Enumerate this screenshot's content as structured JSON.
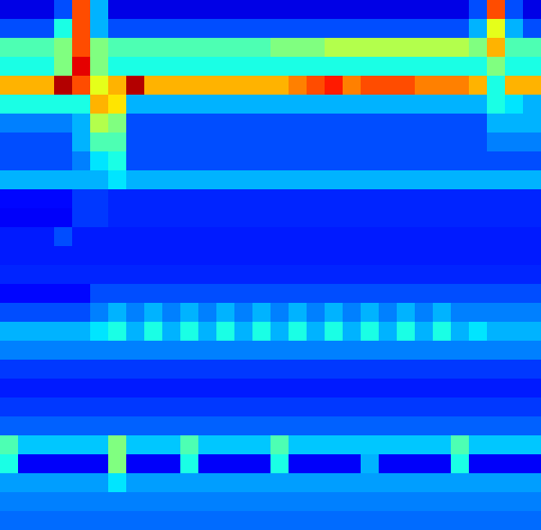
{
  "chart_data": {
    "type": "heatmap",
    "tick_labels": false,
    "zlim": [
      0,
      10
    ],
    "cells": [
      [
        1,
        1,
        1,
        2,
        8,
        3,
        1,
        1,
        1,
        1,
        1,
        1,
        1,
        1,
        1,
        1,
        1,
        1,
        1,
        1,
        1,
        1,
        1,
        1,
        1,
        1,
        2,
        8,
        2,
        1
      ],
      [
        2,
        2,
        2,
        4,
        8,
        3,
        2,
        2,
        2,
        2,
        2,
        2,
        2,
        2,
        2,
        2,
        2,
        2,
        2,
        2,
        2,
        2,
        2,
        2,
        2,
        2,
        3,
        6,
        3,
        2
      ],
      [
        4.5,
        4.5,
        4.5,
        5,
        8,
        5,
        4.5,
        4.5,
        4.5,
        4.5,
        4.5,
        4.5,
        4.5,
        4.5,
        4.5,
        5,
        5,
        5,
        5.5,
        5.5,
        5.5,
        5.5,
        5.5,
        5.5,
        5.5,
        5.5,
        5,
        7,
        4.5,
        4.5
      ],
      [
        4,
        4,
        4,
        5,
        9,
        5,
        4,
        4,
        4,
        4,
        4,
        4,
        4,
        4,
        4,
        4,
        4,
        4,
        4,
        4,
        4,
        4,
        4,
        4,
        4,
        4,
        4,
        5,
        4,
        4
      ],
      [
        7,
        7,
        7,
        9.5,
        8,
        6,
        7,
        9.5,
        7,
        7,
        7,
        7,
        7,
        7,
        7,
        7,
        7.5,
        8,
        8.5,
        7.5,
        8,
        8,
        8,
        7.5,
        7.5,
        7.5,
        7,
        4,
        7,
        7
      ],
      [
        4,
        4,
        4,
        4,
        4,
        7,
        6.5,
        3,
        3,
        3,
        3,
        3,
        3,
        3,
        3,
        3,
        3,
        3,
        3,
        3,
        3,
        3,
        3,
        3,
        3,
        3,
        3,
        4,
        3.5,
        3
      ],
      [
        2.5,
        2.5,
        2.5,
        2.5,
        3,
        5.5,
        5,
        2,
        2,
        2,
        2,
        2,
        2,
        2,
        2,
        2,
        2,
        2,
        2,
        2,
        2,
        2,
        2,
        2,
        2,
        2,
        2,
        3,
        3,
        3
      ],
      [
        2,
        2,
        2,
        2,
        3,
        4.5,
        4.5,
        2,
        2,
        2,
        2,
        2,
        2,
        2,
        2,
        2,
        2,
        2,
        2,
        2,
        2,
        2,
        2,
        2,
        2,
        2,
        2,
        2.5,
        2.5,
        2.5
      ],
      [
        2,
        2,
        2,
        2,
        2.5,
        3.5,
        4,
        2,
        2,
        2,
        2,
        2,
        2,
        2,
        2,
        2,
        2,
        2,
        2,
        2,
        2,
        2,
        2,
        2,
        2,
        2,
        2,
        2,
        2,
        2
      ],
      [
        3,
        3,
        3,
        3,
        3,
        3,
        3.5,
        3,
        3,
        3,
        3,
        3,
        3,
        3,
        3,
        3,
        3,
        3,
        3,
        3,
        3,
        3,
        3,
        3,
        3,
        3,
        3,
        3,
        3,
        3
      ],
      [
        1.3,
        1.3,
        1.3,
        1.3,
        1.8,
        1.8,
        1.6,
        1.6,
        1.6,
        1.6,
        1.6,
        1.6,
        1.6,
        1.6,
        1.6,
        1.6,
        1.6,
        1.6,
        1.6,
        1.6,
        1.6,
        1.6,
        1.6,
        1.6,
        1.6,
        1.6,
        1.6,
        1.6,
        1.6,
        1.6
      ],
      [
        1.2,
        1.2,
        1.2,
        1.2,
        1.8,
        1.8,
        1.6,
        1.6,
        1.6,
        1.6,
        1.6,
        1.6,
        1.6,
        1.6,
        1.6,
        1.6,
        1.6,
        1.6,
        1.6,
        1.6,
        1.6,
        1.6,
        1.6,
        1.6,
        1.6,
        1.6,
        1.6,
        1.6,
        1.6,
        1.6
      ],
      [
        1.5,
        1.5,
        1.5,
        2,
        1.5,
        1.5,
        1.5,
        1.5,
        1.5,
        1.5,
        1.5,
        1.5,
        1.5,
        1.5,
        1.5,
        1.5,
        1.5,
        1.5,
        1.5,
        1.5,
        1.5,
        1.5,
        1.5,
        1.5,
        1.5,
        1.5,
        1.5,
        1.5,
        1.5,
        1.5
      ],
      [
        1.5,
        1.5,
        1.5,
        1.5,
        1.5,
        1.5,
        1.5,
        1.5,
        1.5,
        1.5,
        1.5,
        1.5,
        1.5,
        1.5,
        1.5,
        1.5,
        1.5,
        1.5,
        1.5,
        1.5,
        1.5,
        1.5,
        1.5,
        1.5,
        1.5,
        1.5,
        1.5,
        1.5,
        1.5,
        1.5
      ],
      [
        1.6,
        1.6,
        1.6,
        1.6,
        1.6,
        1.6,
        1.6,
        1.6,
        1.6,
        1.6,
        1.6,
        1.6,
        1.6,
        1.6,
        1.6,
        1.6,
        1.6,
        1.6,
        1.6,
        1.6,
        1.6,
        1.6,
        1.6,
        1.6,
        1.6,
        1.6,
        1.6,
        1.6,
        1.6,
        1.6
      ],
      [
        1.3,
        1.3,
        1.3,
        1.3,
        1.3,
        2,
        2,
        2,
        2,
        2,
        2,
        2,
        2,
        2,
        2,
        2,
        2,
        2,
        2,
        2,
        2,
        2,
        2,
        2,
        2,
        2,
        2,
        2,
        2,
        2
      ],
      [
        2,
        2,
        2,
        2,
        2,
        2.5,
        3,
        2.5,
        3,
        2.5,
        3,
        2.5,
        3,
        2.5,
        3,
        2.5,
        3,
        2.5,
        3,
        2.5,
        3,
        2.5,
        3,
        2.5,
        3,
        2.5,
        2.5,
        2.5,
        2.5,
        2.5
      ],
      [
        3,
        3,
        3,
        3,
        3,
        3.5,
        4,
        3,
        4,
        3,
        4,
        3,
        4,
        3,
        4,
        3,
        4,
        3,
        4,
        3,
        4,
        3,
        4,
        3,
        4,
        3,
        3.5,
        3,
        3,
        3
      ],
      [
        2.5,
        2.5,
        2.5,
        2.5,
        2.5,
        2.5,
        2.5,
        2.5,
        2.5,
        2.5,
        2.5,
        2.5,
        2.5,
        2.5,
        2.5,
        2.5,
        2.5,
        2.5,
        2.5,
        2.5,
        2.5,
        2.5,
        2.5,
        2.5,
        2.5,
        2.5,
        2.5,
        2.5,
        2.5,
        2.5
      ],
      [
        1.8,
        1.8,
        1.8,
        1.8,
        1.8,
        1.8,
        1.8,
        1.8,
        1.8,
        1.8,
        1.8,
        1.8,
        1.8,
        1.8,
        1.8,
        1.8,
        1.8,
        1.8,
        1.8,
        1.8,
        1.8,
        1.8,
        1.8,
        1.8,
        1.8,
        1.8,
        1.8,
        1.8,
        1.8,
        1.8
      ],
      [
        1.5,
        1.5,
        1.5,
        1.5,
        1.5,
        1.5,
        1.5,
        1.5,
        1.5,
        1.5,
        1.5,
        1.5,
        1.5,
        1.5,
        1.5,
        1.5,
        1.5,
        1.5,
        1.5,
        1.5,
        1.5,
        1.5,
        1.5,
        1.5,
        1.5,
        1.5,
        1.5,
        1.5,
        1.5,
        1.5
      ],
      [
        1.8,
        1.8,
        1.8,
        1.8,
        1.8,
        1.8,
        1.8,
        1.8,
        1.8,
        1.8,
        1.8,
        1.8,
        1.8,
        1.8,
        1.8,
        1.8,
        1.8,
        1.8,
        1.8,
        1.8,
        1.8,
        1.8,
        1.8,
        1.8,
        1.8,
        1.8,
        1.8,
        1.8,
        1.8,
        1.8
      ],
      [
        2.2,
        2.2,
        2.2,
        2.2,
        2.2,
        2.2,
        2.2,
        2.2,
        2.2,
        2.2,
        2.2,
        2.2,
        2.2,
        2.2,
        2.2,
        2.2,
        2.2,
        2.2,
        2.2,
        2.2,
        2.2,
        2.2,
        2.2,
        2.2,
        2.2,
        2.2,
        2.2,
        2.2,
        2.2,
        2.2
      ],
      [
        4.5,
        3.2,
        3.2,
        3.2,
        3.2,
        3.2,
        5,
        3.2,
        3.2,
        3.2,
        4.5,
        3.2,
        3.2,
        3.2,
        3.2,
        4.5,
        3.2,
        3.2,
        3.2,
        3.2,
        3.2,
        3.2,
        3.2,
        3.2,
        3.2,
        4.5,
        3.2,
        3.2,
        3.2,
        3.2
      ],
      [
        4,
        1.2,
        1.2,
        1.2,
        1.2,
        1.2,
        5,
        1.2,
        1.2,
        1.2,
        4,
        1.2,
        1.2,
        1.2,
        1.2,
        4,
        1.2,
        1.2,
        1.2,
        1.2,
        3,
        1.2,
        1.2,
        1.2,
        1.2,
        4,
        1.2,
        1.2,
        1.2,
        1.2
      ],
      [
        2.8,
        2.8,
        2.8,
        2.8,
        2.8,
        2.8,
        3.5,
        2.8,
        2.8,
        2.8,
        2.8,
        2.8,
        2.8,
        2.8,
        2.8,
        2.8,
        2.8,
        2.8,
        2.8,
        2.8,
        2.8,
        2.8,
        2.8,
        2.8,
        2.8,
        2.8,
        2.8,
        2.8,
        2.8,
        2.8
      ],
      [
        2.5,
        2.5,
        2.5,
        2.5,
        2.5,
        2.5,
        2.5,
        2.5,
        2.5,
        2.5,
        2.5,
        2.5,
        2.5,
        2.5,
        2.5,
        2.5,
        2.5,
        2.5,
        2.5,
        2.5,
        2.5,
        2.5,
        2.5,
        2.5,
        2.5,
        2.5,
        2.5,
        2.5,
        2.5,
        2.5
      ],
      [
        2.3,
        2.3,
        2.3,
        2.3,
        2.3,
        2.3,
        2.3,
        2.3,
        2.3,
        2.3,
        2.3,
        2.3,
        2.3,
        2.3,
        2.3,
        2.3,
        2.3,
        2.3,
        2.3,
        2.3,
        2.3,
        2.3,
        2.3,
        2.3,
        2.3,
        2.3,
        2.3,
        2.3,
        2.3,
        2.3
      ]
    ]
  }
}
